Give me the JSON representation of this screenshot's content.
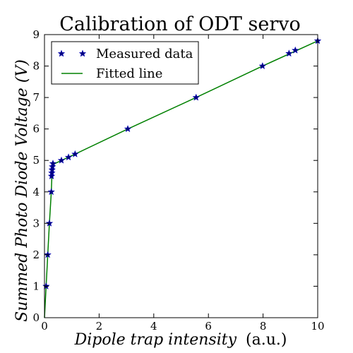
{
  "chart_data": {
    "type": "scatter",
    "title": "Calibration of ODT servo",
    "xlabel_italic": "Dipole trap intensity",
    "xlabel_unit": "(a.u.)",
    "ylabel": "Summed Photo Diode Voltage (V)",
    "xlim": [
      0,
      10
    ],
    "ylim": [
      0,
      9
    ],
    "xticks": [
      0,
      2,
      4,
      6,
      8,
      10
    ],
    "yticks": [
      0,
      1,
      2,
      3,
      4,
      5,
      6,
      7,
      8,
      9
    ],
    "grid": false,
    "legend_position": "top-left",
    "series": [
      {
        "name": "Measured data",
        "kind": "markers",
        "marker": "star",
        "color": "#000080",
        "points": [
          [
            0.06,
            1.0
          ],
          [
            0.12,
            2.0
          ],
          [
            0.18,
            3.0
          ],
          [
            0.25,
            4.0
          ],
          [
            0.26,
            4.5
          ],
          [
            0.27,
            4.6
          ],
          [
            0.28,
            4.7
          ],
          [
            0.29,
            4.8
          ],
          [
            0.31,
            4.9
          ],
          [
            0.62,
            5.0
          ],
          [
            0.88,
            5.1
          ],
          [
            1.12,
            5.2
          ],
          [
            3.05,
            6.0
          ],
          [
            5.55,
            7.0
          ],
          [
            7.98,
            8.0
          ],
          [
            8.95,
            8.4
          ],
          [
            9.18,
            8.5
          ],
          [
            10.0,
            8.8
          ]
        ]
      },
      {
        "name": "Fitted line",
        "kind": "line",
        "color": "#008000",
        "points": [
          [
            0.0,
            0.0
          ],
          [
            0.06,
            1.0
          ],
          [
            0.12,
            2.0
          ],
          [
            0.18,
            3.0
          ],
          [
            0.25,
            4.0
          ],
          [
            0.28,
            4.7
          ],
          [
            0.33,
            4.88
          ],
          [
            1.12,
            5.2
          ],
          [
            3.05,
            6.0
          ],
          [
            5.55,
            7.0
          ],
          [
            7.98,
            8.0
          ],
          [
            10.0,
            8.8
          ]
        ]
      }
    ]
  }
}
